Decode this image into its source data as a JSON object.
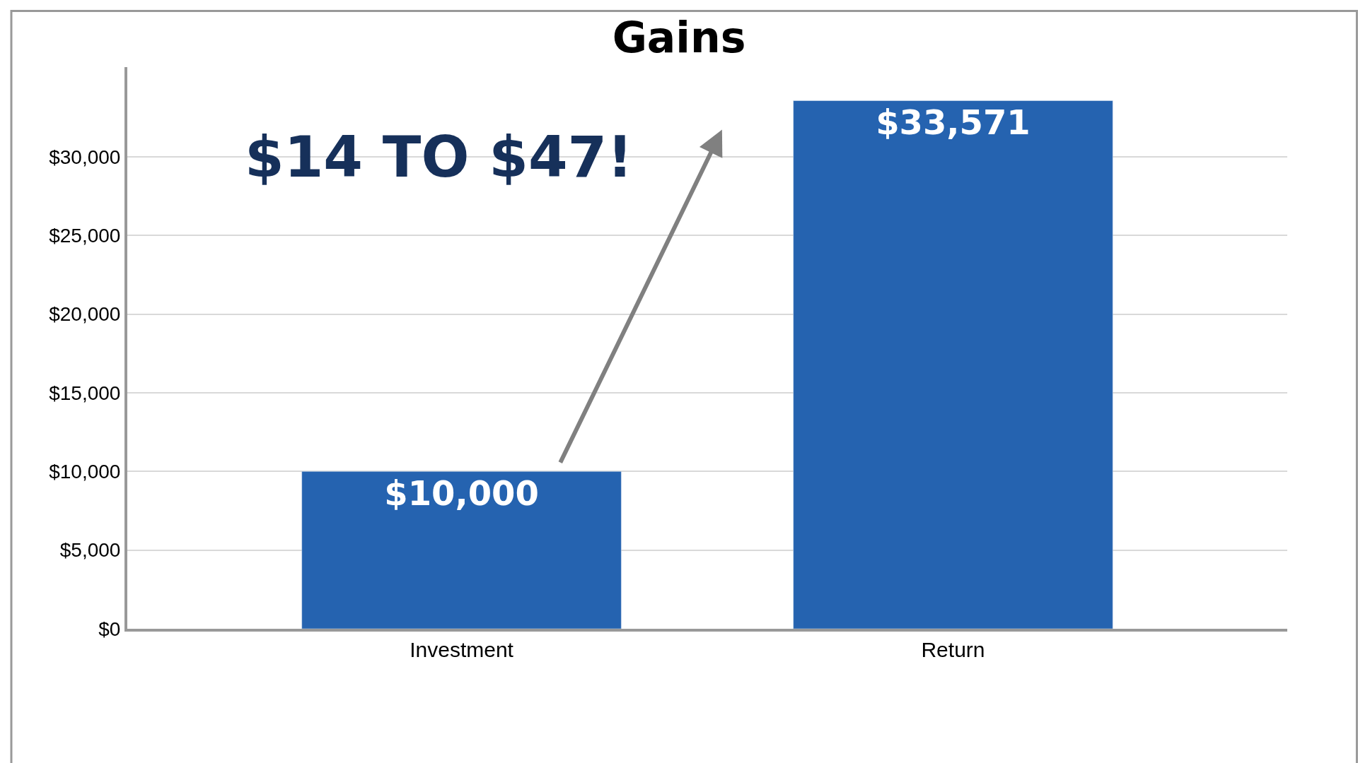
{
  "chart_data": {
    "type": "bar",
    "title": "Gains",
    "categories": [
      "Investment",
      "Return"
    ],
    "values": [
      10000,
      33571
    ],
    "color": "#2563b0",
    "value_labels": [
      "$10,000",
      "$33,571"
    ],
    "annotations": [
      "$14 TO $47!"
    ],
    "ylim": [
      0,
      35700
    ],
    "yticks": [
      {
        "value": 0,
        "label": "$0"
      },
      {
        "value": 5000,
        "label": "$5,000"
      },
      {
        "value": 10000,
        "label": "$10,000"
      },
      {
        "value": 15000,
        "label": "$15,000"
      },
      {
        "value": 20000,
        "label": "$20,000"
      },
      {
        "value": 25000,
        "label": "$25,000"
      },
      {
        "value": 30000,
        "label": "$30,000"
      }
    ],
    "grid": "y"
  }
}
